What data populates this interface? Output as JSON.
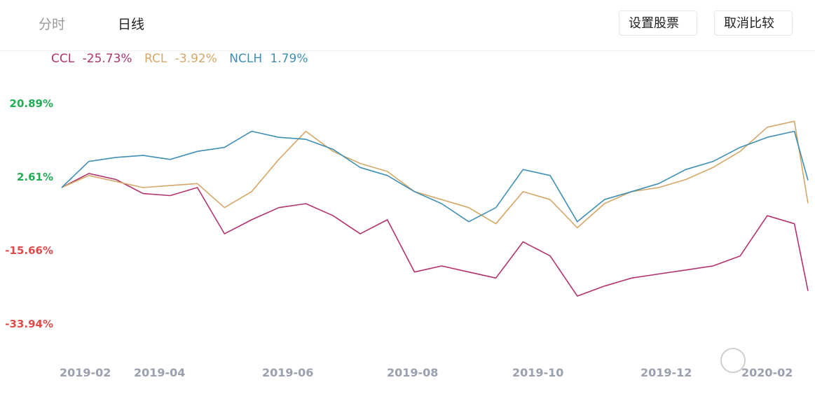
{
  "tabs": {
    "fenshi": "分时",
    "rixian": "日线"
  },
  "buttons": {
    "set_stock": "设置股票",
    "cancel_compare": "取消比较"
  },
  "colors": {
    "CCL": "#b3326e",
    "RCL": "#d4a767",
    "NCLH": "#3f8fb4",
    "positive": "#1fae54",
    "negative": "#e24a4a",
    "axis": "#9aa0ae"
  },
  "chart_data": {
    "type": "line",
    "title": "",
    "legend": [
      {
        "name": "CCL",
        "value": "-25.73%"
      },
      {
        "name": "RCL",
        "value": "-3.92%"
      },
      {
        "name": "NCLH",
        "value": "1.79%"
      }
    ],
    "y_ticks": [
      "20.89%",
      "2.61%",
      "-15.66%",
      "-33.94%"
    ],
    "ylim": [
      -33.94,
      20.89
    ],
    "x_ticks": [
      "2019-02",
      "2019-04",
      "2019-06",
      "2019-08",
      "2019-10",
      "2019-12",
      "2020-02"
    ],
    "x": [
      "2019-01-11",
      "2019-01-25",
      "2019-02-08",
      "2019-02-22",
      "2019-03-08",
      "2019-03-22",
      "2019-04-05",
      "2019-04-19",
      "2019-05-03",
      "2019-05-17",
      "2019-05-31",
      "2019-06-14",
      "2019-06-28",
      "2019-07-12",
      "2019-07-26",
      "2019-08-09",
      "2019-08-23",
      "2019-09-06",
      "2019-09-20",
      "2019-10-04",
      "2019-10-18",
      "2019-11-01",
      "2019-11-15",
      "2019-11-29",
      "2019-12-13",
      "2019-12-27",
      "2020-01-10",
      "2020-01-24",
      "2020-01-31"
    ],
    "series": [
      {
        "name": "CCL",
        "values": [
          0.0,
          3.5,
          2.0,
          -1.5,
          -2.0,
          0.0,
          -11.5,
          -8.0,
          -5.0,
          -4.0,
          -7.0,
          -11.5,
          -8.0,
          -21.0,
          -19.5,
          -21.0,
          -22.5,
          -13.5,
          -17.0,
          -27.0,
          -24.5,
          -22.5,
          -21.5,
          -20.5,
          -19.5,
          -17.0,
          -7.0,
          -9.0,
          -25.7
        ]
      },
      {
        "name": "RCL",
        "values": [
          0.0,
          3.0,
          1.5,
          0.0,
          0.5,
          1.0,
          -5.0,
          -1.0,
          7.0,
          14.0,
          9.0,
          6.0,
          4.0,
          -1.0,
          -3.0,
          -5.0,
          -9.0,
          -1.0,
          -3.0,
          -10.0,
          -4.0,
          -1.0,
          0.0,
          2.0,
          5.0,
          9.0,
          15.0,
          16.5,
          -3.9
        ]
      },
      {
        "name": "NCLH",
        "values": [
          0.0,
          6.5,
          7.5,
          8.0,
          7.0,
          9.0,
          10.0,
          14.0,
          12.5,
          12.0,
          9.5,
          5.0,
          3.0,
          -1.0,
          -4.0,
          -8.5,
          -5.0,
          4.5,
          3.0,
          -8.5,
          -3.0,
          -1.0,
          1.0,
          4.5,
          6.5,
          10.0,
          12.5,
          14.0,
          1.8
        ]
      }
    ]
  }
}
